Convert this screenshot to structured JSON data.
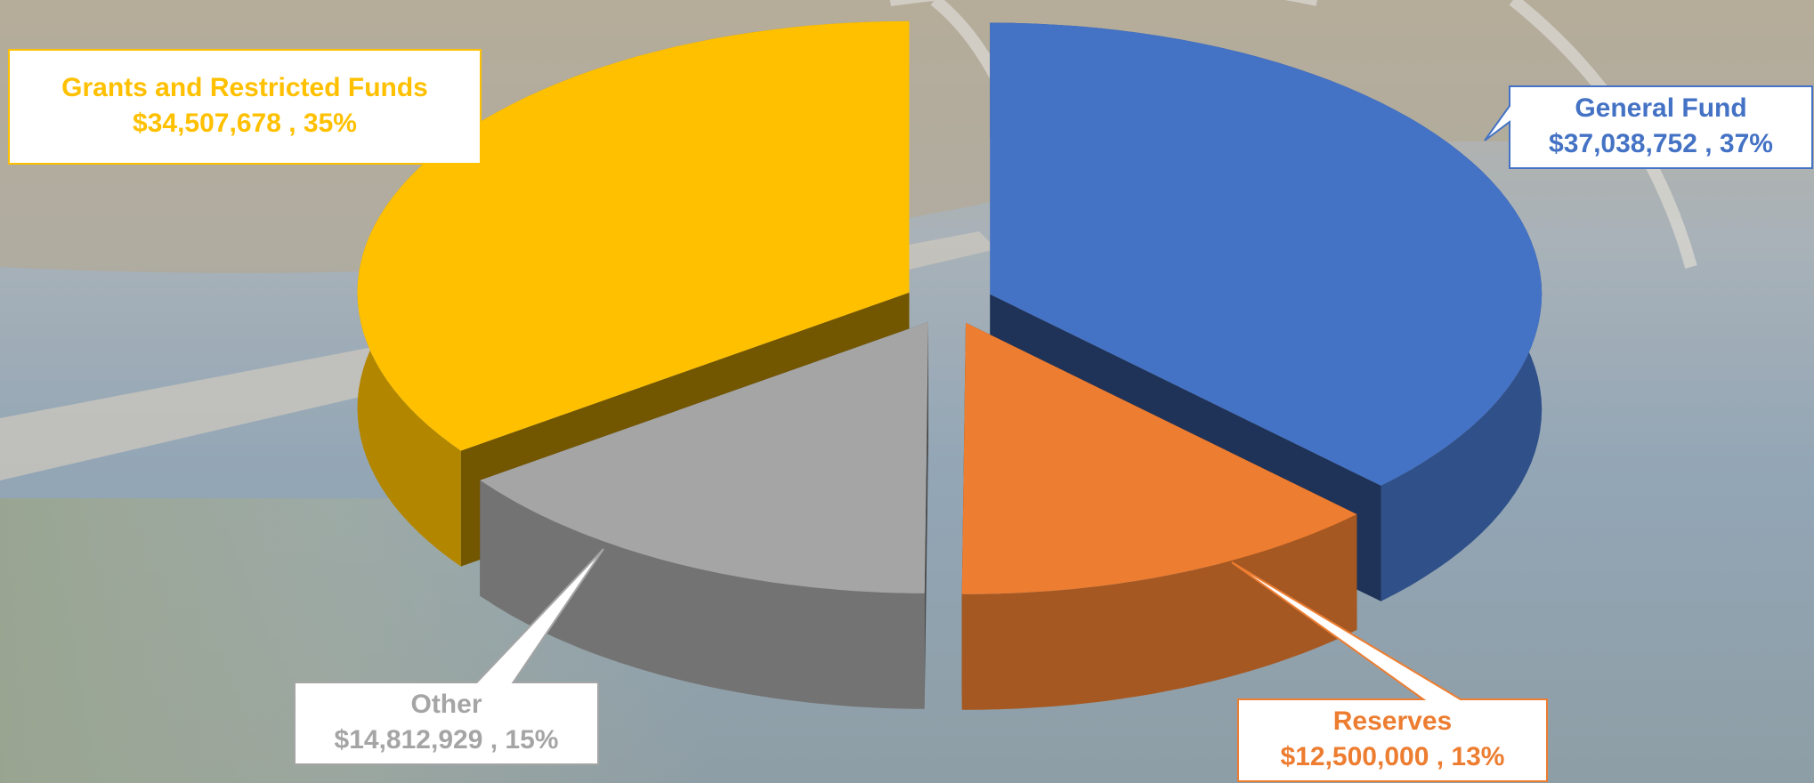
{
  "chart_data": {
    "type": "pie",
    "three_d": true,
    "exploded": true,
    "categories": [
      "General Fund",
      "Reserves",
      "Other",
      "Grants and Restricted Funds"
    ],
    "values": [
      37038752,
      12500000,
      14812929,
      34507678
    ],
    "value_labels": [
      "$37,038,752 , 37%",
      "$12,500,000 , 13%",
      "$14,812,929 , 15%",
      "$34,507,678 , 35%"
    ],
    "colors": [
      "#4472c4",
      "#ed7d31",
      "#a5a5a5",
      "#ffc000"
    ]
  }
}
